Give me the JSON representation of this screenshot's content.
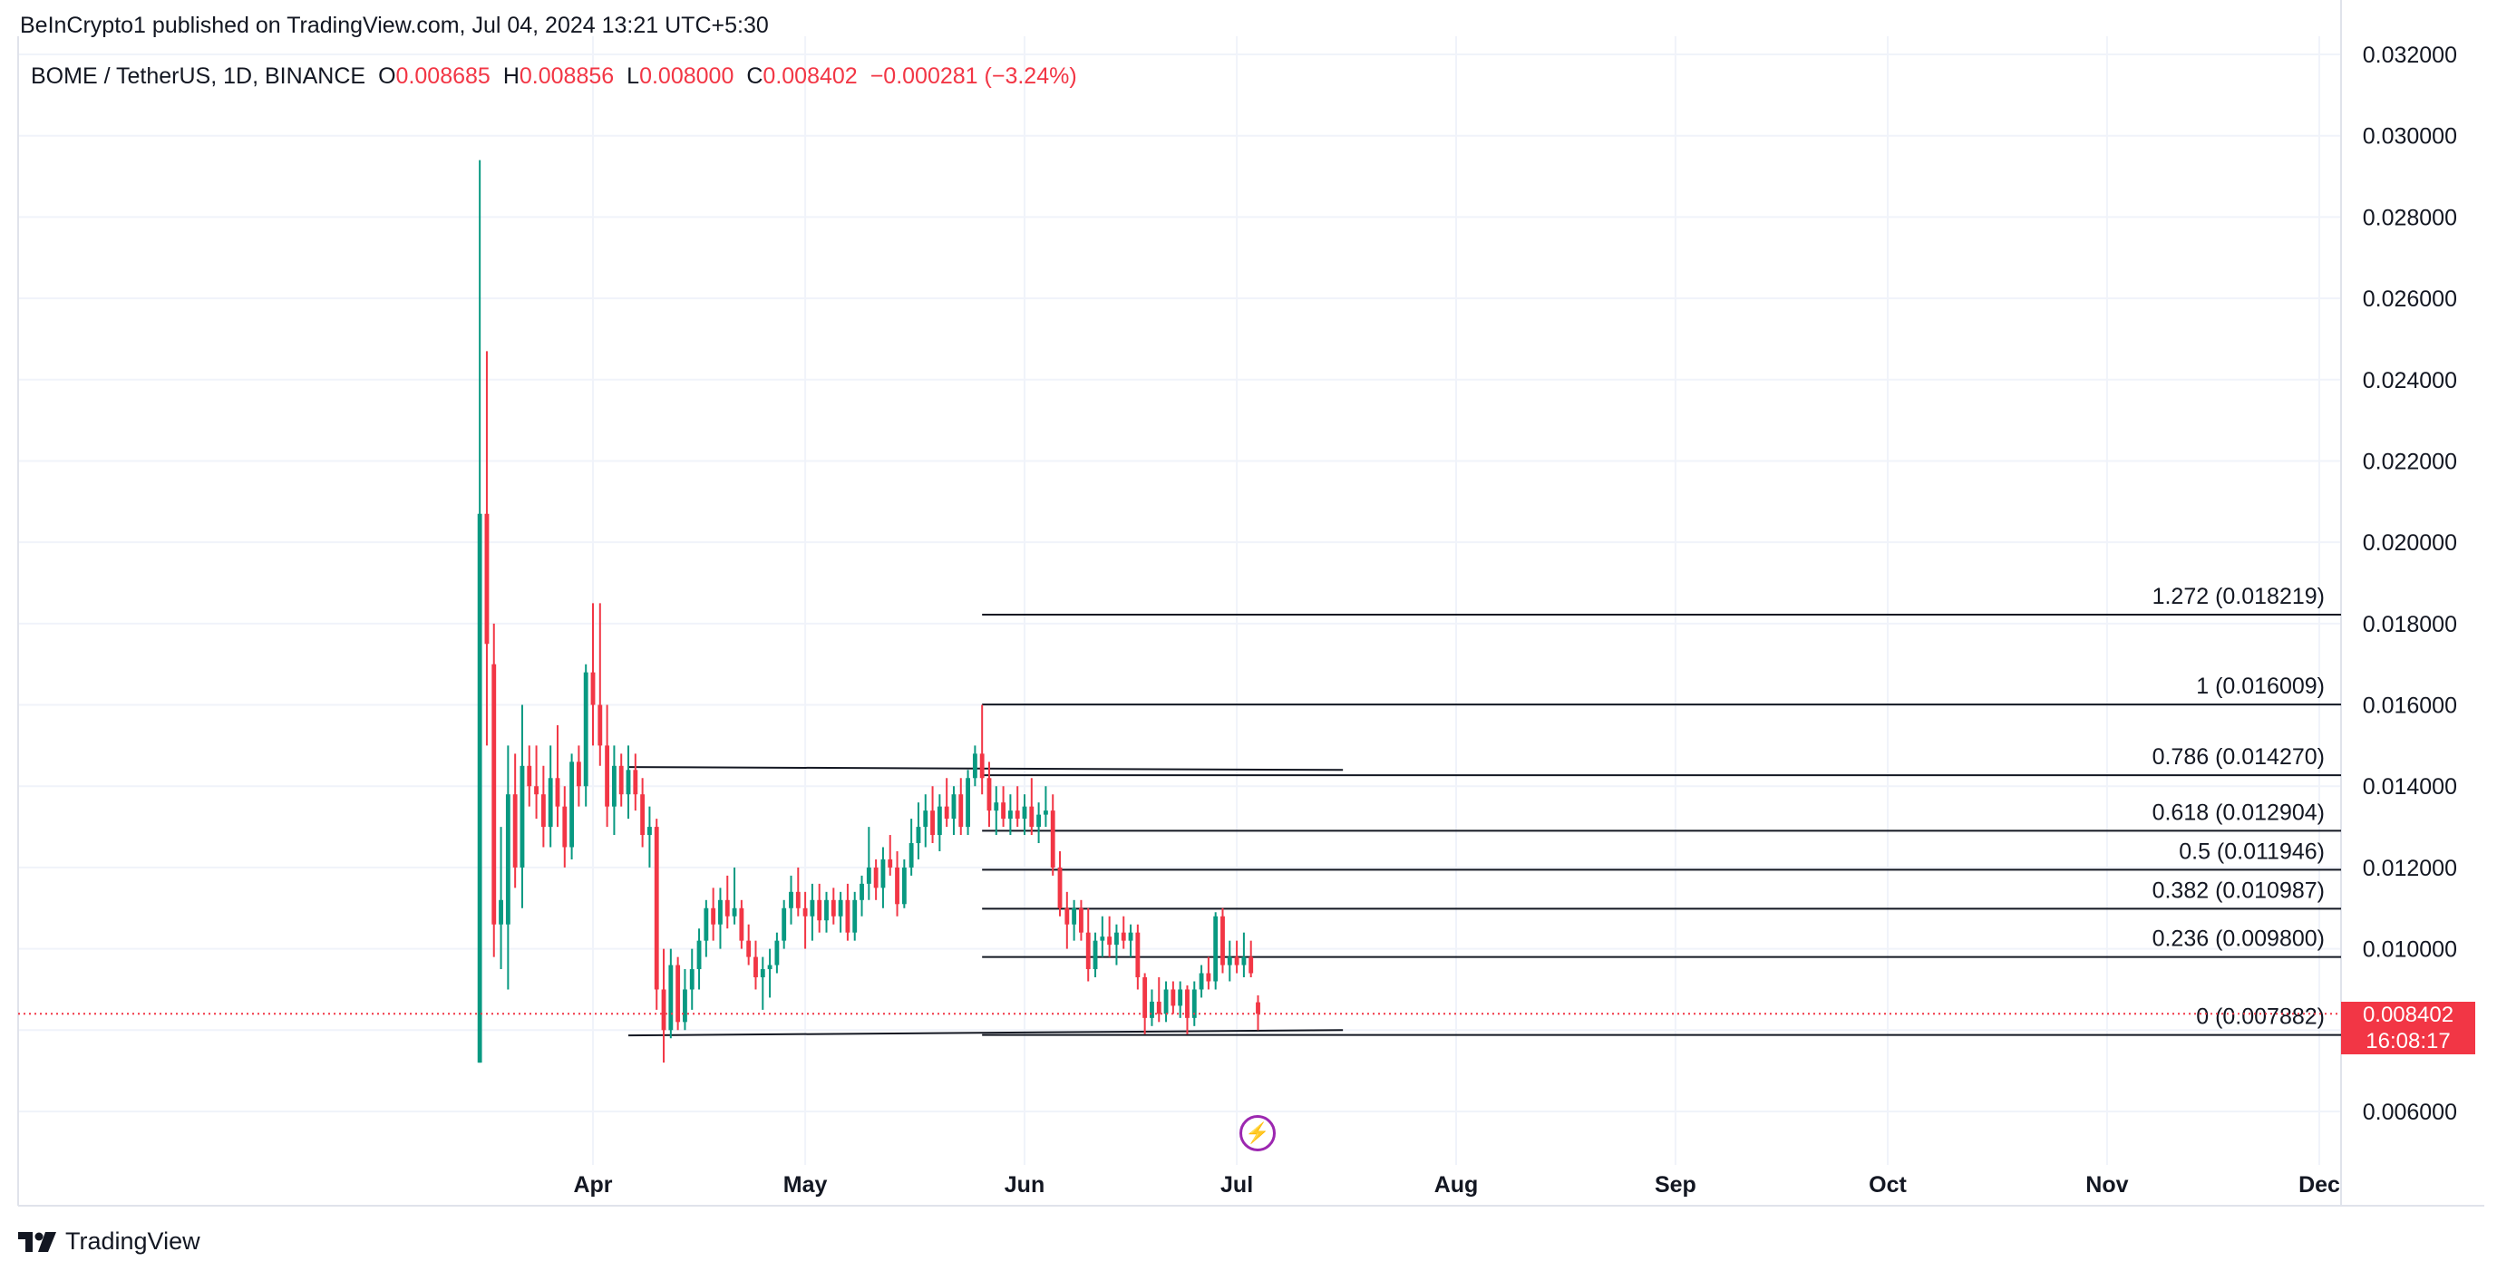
{
  "header": {
    "published_by": "BeInCrypto1 published on TradingView.com, Jul 04, 2024 13:21 UTC+5:30"
  },
  "symbol": {
    "name": "BOME / TetherUS, 1D, BINANCE",
    "o_label": "O",
    "o_value": "0.008685",
    "h_label": "H",
    "h_value": "0.008856",
    "l_label": "L",
    "l_value": "0.008000",
    "c_label": "C",
    "c_value": "0.008402",
    "change": "−0.000281 (−3.24%)"
  },
  "current_price": {
    "value": "0.008402",
    "countdown": "16:08:17",
    "color": "#f23645"
  },
  "brand": {
    "name": "TradingView"
  },
  "colors": {
    "up": "#089981",
    "down": "#f23645",
    "grid": "#f0f3fa",
    "line": "#131722",
    "accent": "#9c27b0"
  },
  "chart_data": {
    "type": "candlestick",
    "title": "BOME / TetherUS, 1D, BINANCE",
    "xlabel": "",
    "ylabel": "",
    "ylim": [
      0.005,
      0.032
    ],
    "y_ticks": [
      "0.032000",
      "0.030000",
      "0.028000",
      "0.026000",
      "0.024000",
      "0.022000",
      "0.020000",
      "0.018000",
      "0.016000",
      "0.014000",
      "0.012000",
      "0.010000",
      "0.008000",
      "0.006000"
    ],
    "x_ticks": [
      {
        "label": "Apr",
        "date": "2024-04-01"
      },
      {
        "label": "May",
        "date": "2024-05-01"
      },
      {
        "label": "Jun",
        "date": "2024-06-01"
      },
      {
        "label": "Jul",
        "date": "2024-07-01"
      },
      {
        "label": "Aug",
        "date": "2024-08-01"
      },
      {
        "label": "Sep",
        "date": "2024-09-01"
      },
      {
        "label": "Oct",
        "date": "2024-10-01"
      },
      {
        "label": "Nov",
        "date": "2024-11-01"
      },
      {
        "label": "Dec",
        "date": "2024-12-01"
      }
    ],
    "candles": [
      {
        "date": "2024-03-16",
        "o": 0.0072,
        "h": 0.0294,
        "l": 0.0072,
        "c": 0.0207
      },
      {
        "date": "2024-03-17",
        "o": 0.0207,
        "h": 0.0247,
        "l": 0.015,
        "c": 0.0175
      },
      {
        "date": "2024-03-18",
        "o": 0.017,
        "h": 0.018,
        "l": 0.0098,
        "c": 0.0106
      },
      {
        "date": "2024-03-19",
        "o": 0.0106,
        "h": 0.013,
        "l": 0.0095,
        "c": 0.0112
      },
      {
        "date": "2024-03-20",
        "o": 0.0106,
        "h": 0.015,
        "l": 0.009,
        "c": 0.0138
      },
      {
        "date": "2024-03-21",
        "o": 0.0138,
        "h": 0.0148,
        "l": 0.0115,
        "c": 0.012
      },
      {
        "date": "2024-03-22",
        "o": 0.012,
        "h": 0.016,
        "l": 0.011,
        "c": 0.0145
      },
      {
        "date": "2024-03-23",
        "o": 0.0145,
        "h": 0.015,
        "l": 0.0135,
        "c": 0.014
      },
      {
        "date": "2024-03-24",
        "o": 0.014,
        "h": 0.015,
        "l": 0.0132,
        "c": 0.0138
      },
      {
        "date": "2024-03-25",
        "o": 0.0138,
        "h": 0.0145,
        "l": 0.0125,
        "c": 0.013
      },
      {
        "date": "2024-03-26",
        "o": 0.013,
        "h": 0.015,
        "l": 0.0125,
        "c": 0.0142
      },
      {
        "date": "2024-03-27",
        "o": 0.0142,
        "h": 0.0155,
        "l": 0.013,
        "c": 0.0135
      },
      {
        "date": "2024-03-28",
        "o": 0.0135,
        "h": 0.014,
        "l": 0.012,
        "c": 0.0125
      },
      {
        "date": "2024-03-29",
        "o": 0.0125,
        "h": 0.0148,
        "l": 0.0122,
        "c": 0.0146
      },
      {
        "date": "2024-03-30",
        "o": 0.0146,
        "h": 0.015,
        "l": 0.0135,
        "c": 0.014
      },
      {
        "date": "2024-03-31",
        "o": 0.014,
        "h": 0.017,
        "l": 0.0135,
        "c": 0.0168
      },
      {
        "date": "2024-04-01",
        "o": 0.0168,
        "h": 0.0185,
        "l": 0.015,
        "c": 0.016
      },
      {
        "date": "2024-04-02",
        "o": 0.016,
        "h": 0.0185,
        "l": 0.0145,
        "c": 0.015
      },
      {
        "date": "2024-04-03",
        "o": 0.015,
        "h": 0.016,
        "l": 0.013,
        "c": 0.0135
      },
      {
        "date": "2024-04-04",
        "o": 0.0135,
        "h": 0.015,
        "l": 0.0128,
        "c": 0.0145
      },
      {
        "date": "2024-04-05",
        "o": 0.0145,
        "h": 0.0148,
        "l": 0.0135,
        "c": 0.0138
      },
      {
        "date": "2024-04-06",
        "o": 0.0138,
        "h": 0.015,
        "l": 0.0132,
        "c": 0.0144
      },
      {
        "date": "2024-04-07",
        "o": 0.0144,
        "h": 0.0148,
        "l": 0.0134,
        "c": 0.0138
      },
      {
        "date": "2024-04-08",
        "o": 0.0138,
        "h": 0.0142,
        "l": 0.0125,
        "c": 0.0128
      },
      {
        "date": "2024-04-09",
        "o": 0.0128,
        "h": 0.0135,
        "l": 0.012,
        "c": 0.013
      },
      {
        "date": "2024-04-10",
        "o": 0.013,
        "h": 0.0132,
        "l": 0.0085,
        "c": 0.009
      },
      {
        "date": "2024-04-11",
        "o": 0.009,
        "h": 0.01,
        "l": 0.0072,
        "c": 0.008
      },
      {
        "date": "2024-04-12",
        "o": 0.008,
        "h": 0.01,
        "l": 0.0078,
        "c": 0.0096
      },
      {
        "date": "2024-04-13",
        "o": 0.0096,
        "h": 0.0098,
        "l": 0.008,
        "c": 0.0082
      },
      {
        "date": "2024-04-14",
        "o": 0.0082,
        "h": 0.0095,
        "l": 0.008,
        "c": 0.009
      },
      {
        "date": "2024-04-15",
        "o": 0.009,
        "h": 0.01,
        "l": 0.0085,
        "c": 0.0095
      },
      {
        "date": "2024-04-16",
        "o": 0.0095,
        "h": 0.0105,
        "l": 0.009,
        "c": 0.0102
      },
      {
        "date": "2024-04-17",
        "o": 0.0102,
        "h": 0.0112,
        "l": 0.0098,
        "c": 0.011
      },
      {
        "date": "2024-04-18",
        "o": 0.011,
        "h": 0.0115,
        "l": 0.0102,
        "c": 0.0106
      },
      {
        "date": "2024-04-19",
        "o": 0.0106,
        "h": 0.0115,
        "l": 0.01,
        "c": 0.0112
      },
      {
        "date": "2024-04-20",
        "o": 0.0112,
        "h": 0.0118,
        "l": 0.0105,
        "c": 0.0108
      },
      {
        "date": "2024-04-21",
        "o": 0.0108,
        "h": 0.012,
        "l": 0.0106,
        "c": 0.011
      },
      {
        "date": "2024-04-22",
        "o": 0.011,
        "h": 0.0112,
        "l": 0.01,
        "c": 0.0102
      },
      {
        "date": "2024-04-23",
        "o": 0.0102,
        "h": 0.0106,
        "l": 0.0096,
        "c": 0.0098
      },
      {
        "date": "2024-04-24",
        "o": 0.0098,
        "h": 0.0102,
        "l": 0.009,
        "c": 0.0093
      },
      {
        "date": "2024-04-25",
        "o": 0.0093,
        "h": 0.0098,
        "l": 0.0085,
        "c": 0.0095
      },
      {
        "date": "2024-04-26",
        "o": 0.0095,
        "h": 0.01,
        "l": 0.0088,
        "c": 0.0096
      },
      {
        "date": "2024-04-27",
        "o": 0.0096,
        "h": 0.0104,
        "l": 0.0094,
        "c": 0.0102
      },
      {
        "date": "2024-04-28",
        "o": 0.0102,
        "h": 0.0112,
        "l": 0.01,
        "c": 0.011
      },
      {
        "date": "2024-04-29",
        "o": 0.011,
        "h": 0.0118,
        "l": 0.0106,
        "c": 0.0114
      },
      {
        "date": "2024-04-30",
        "o": 0.0114,
        "h": 0.012,
        "l": 0.0108,
        "c": 0.011
      },
      {
        "date": "2024-05-01",
        "o": 0.011,
        "h": 0.0114,
        "l": 0.01,
        "c": 0.0108
      },
      {
        "date": "2024-05-02",
        "o": 0.0108,
        "h": 0.0116,
        "l": 0.0102,
        "c": 0.0112
      },
      {
        "date": "2024-05-03",
        "o": 0.0112,
        "h": 0.0116,
        "l": 0.0104,
        "c": 0.0107
      },
      {
        "date": "2024-05-04",
        "o": 0.0107,
        "h": 0.0114,
        "l": 0.0104,
        "c": 0.0112
      },
      {
        "date": "2024-05-05",
        "o": 0.0112,
        "h": 0.0115,
        "l": 0.0106,
        "c": 0.0108
      },
      {
        "date": "2024-05-06",
        "o": 0.0108,
        "h": 0.0114,
        "l": 0.0104,
        "c": 0.0112
      },
      {
        "date": "2024-05-07",
        "o": 0.0112,
        "h": 0.0116,
        "l": 0.0102,
        "c": 0.0104
      },
      {
        "date": "2024-05-08",
        "o": 0.0104,
        "h": 0.0114,
        "l": 0.0102,
        "c": 0.0112
      },
      {
        "date": "2024-05-09",
        "o": 0.0112,
        "h": 0.0118,
        "l": 0.0108,
        "c": 0.0116
      },
      {
        "date": "2024-05-10",
        "o": 0.0116,
        "h": 0.013,
        "l": 0.0112,
        "c": 0.012
      },
      {
        "date": "2024-05-11",
        "o": 0.012,
        "h": 0.0122,
        "l": 0.0112,
        "c": 0.0115
      },
      {
        "date": "2024-05-12",
        "o": 0.0115,
        "h": 0.0125,
        "l": 0.011,
        "c": 0.0122
      },
      {
        "date": "2024-05-13",
        "o": 0.0122,
        "h": 0.0128,
        "l": 0.0118,
        "c": 0.012
      },
      {
        "date": "2024-05-14",
        "o": 0.012,
        "h": 0.0124,
        "l": 0.0108,
        "c": 0.0111
      },
      {
        "date": "2024-05-15",
        "o": 0.0111,
        "h": 0.0122,
        "l": 0.011,
        "c": 0.012
      },
      {
        "date": "2024-05-16",
        "o": 0.012,
        "h": 0.0132,
        "l": 0.0118,
        "c": 0.0126
      },
      {
        "date": "2024-05-17",
        "o": 0.0126,
        "h": 0.0136,
        "l": 0.0122,
        "c": 0.013
      },
      {
        "date": "2024-05-18",
        "o": 0.013,
        "h": 0.0138,
        "l": 0.0125,
        "c": 0.0134
      },
      {
        "date": "2024-05-19",
        "o": 0.0134,
        "h": 0.014,
        "l": 0.0126,
        "c": 0.0128
      },
      {
        "date": "2024-05-20",
        "o": 0.0128,
        "h": 0.0138,
        "l": 0.0124,
        "c": 0.0135
      },
      {
        "date": "2024-05-21",
        "o": 0.0135,
        "h": 0.0142,
        "l": 0.013,
        "c": 0.0132
      },
      {
        "date": "2024-05-22",
        "o": 0.0132,
        "h": 0.014,
        "l": 0.0128,
        "c": 0.0138
      },
      {
        "date": "2024-05-23",
        "o": 0.0138,
        "h": 0.0142,
        "l": 0.0128,
        "c": 0.013
      },
      {
        "date": "2024-05-24",
        "o": 0.013,
        "h": 0.0144,
        "l": 0.0128,
        "c": 0.0142
      },
      {
        "date": "2024-05-25",
        "o": 0.0142,
        "h": 0.015,
        "l": 0.014,
        "c": 0.0148
      },
      {
        "date": "2024-05-26",
        "o": 0.0148,
        "h": 0.016,
        "l": 0.0138,
        "c": 0.0142
      },
      {
        "date": "2024-05-27",
        "o": 0.0142,
        "h": 0.0146,
        "l": 0.013,
        "c": 0.0134
      },
      {
        "date": "2024-05-28",
        "o": 0.0134,
        "h": 0.014,
        "l": 0.0128,
        "c": 0.0136
      },
      {
        "date": "2024-05-29",
        "o": 0.0136,
        "h": 0.014,
        "l": 0.013,
        "c": 0.0132
      },
      {
        "date": "2024-05-30",
        "o": 0.0132,
        "h": 0.0138,
        "l": 0.0128,
        "c": 0.0134
      },
      {
        "date": "2024-05-31",
        "o": 0.0134,
        "h": 0.014,
        "l": 0.013,
        "c": 0.0132
      },
      {
        "date": "2024-06-01",
        "o": 0.0132,
        "h": 0.0138,
        "l": 0.0128,
        "c": 0.0135
      },
      {
        "date": "2024-06-02",
        "o": 0.0135,
        "h": 0.0142,
        "l": 0.0128,
        "c": 0.013
      },
      {
        "date": "2024-06-03",
        "o": 0.013,
        "h": 0.0136,
        "l": 0.0126,
        "c": 0.0133
      },
      {
        "date": "2024-06-04",
        "o": 0.0133,
        "h": 0.014,
        "l": 0.013,
        "c": 0.0134
      },
      {
        "date": "2024-06-05",
        "o": 0.0134,
        "h": 0.0138,
        "l": 0.0118,
        "c": 0.012
      },
      {
        "date": "2024-06-06",
        "o": 0.012,
        "h": 0.0124,
        "l": 0.0108,
        "c": 0.011
      },
      {
        "date": "2024-06-07",
        "o": 0.011,
        "h": 0.0114,
        "l": 0.01,
        "c": 0.0106
      },
      {
        "date": "2024-06-08",
        "o": 0.0106,
        "h": 0.0112,
        "l": 0.0102,
        "c": 0.011
      },
      {
        "date": "2024-06-09",
        "o": 0.011,
        "h": 0.0112,
        "l": 0.0102,
        "c": 0.0104
      },
      {
        "date": "2024-06-10",
        "o": 0.0104,
        "h": 0.011,
        "l": 0.0092,
        "c": 0.0095
      },
      {
        "date": "2024-06-11",
        "o": 0.0095,
        "h": 0.0104,
        "l": 0.0093,
        "c": 0.0102
      },
      {
        "date": "2024-06-12",
        "o": 0.0102,
        "h": 0.0108,
        "l": 0.0098,
        "c": 0.0103
      },
      {
        "date": "2024-06-13",
        "o": 0.0103,
        "h": 0.0108,
        "l": 0.0098,
        "c": 0.0101
      },
      {
        "date": "2024-06-14",
        "o": 0.0101,
        "h": 0.0106,
        "l": 0.0096,
        "c": 0.0104
      },
      {
        "date": "2024-06-15",
        "o": 0.0104,
        "h": 0.0108,
        "l": 0.01,
        "c": 0.0102
      },
      {
        "date": "2024-06-16",
        "o": 0.0102,
        "h": 0.0106,
        "l": 0.0098,
        "c": 0.0104
      },
      {
        "date": "2024-06-17",
        "o": 0.0104,
        "h": 0.0106,
        "l": 0.009,
        "c": 0.0093
      },
      {
        "date": "2024-06-18",
        "o": 0.0093,
        "h": 0.0094,
        "l": 0.0079,
        "c": 0.0083
      },
      {
        "date": "2024-06-19",
        "o": 0.0083,
        "h": 0.009,
        "l": 0.0081,
        "c": 0.0087
      },
      {
        "date": "2024-06-20",
        "o": 0.0087,
        "h": 0.0093,
        "l": 0.0082,
        "c": 0.0084
      },
      {
        "date": "2024-06-21",
        "o": 0.0084,
        "h": 0.0092,
        "l": 0.0082,
        "c": 0.009
      },
      {
        "date": "2024-06-22",
        "o": 0.009,
        "h": 0.0092,
        "l": 0.0084,
        "c": 0.0086
      },
      {
        "date": "2024-06-23",
        "o": 0.0086,
        "h": 0.0092,
        "l": 0.0083,
        "c": 0.009
      },
      {
        "date": "2024-06-24",
        "o": 0.009,
        "h": 0.0091,
        "l": 0.0079,
        "c": 0.0083
      },
      {
        "date": "2024-06-25",
        "o": 0.0083,
        "h": 0.0092,
        "l": 0.0081,
        "c": 0.009
      },
      {
        "date": "2024-06-26",
        "o": 0.009,
        "h": 0.0096,
        "l": 0.0088,
        "c": 0.0094
      },
      {
        "date": "2024-06-27",
        "o": 0.0094,
        "h": 0.0098,
        "l": 0.009,
        "c": 0.0092
      },
      {
        "date": "2024-06-28",
        "o": 0.0092,
        "h": 0.0109,
        "l": 0.009,
        "c": 0.0108
      },
      {
        "date": "2024-06-29",
        "o": 0.0108,
        "h": 0.011,
        "l": 0.0094,
        "c": 0.0096
      },
      {
        "date": "2024-06-30",
        "o": 0.0096,
        "h": 0.0102,
        "l": 0.0092,
        "c": 0.0098
      },
      {
        "date": "2024-07-01",
        "o": 0.0098,
        "h": 0.0102,
        "l": 0.0094,
        "c": 0.0096
      },
      {
        "date": "2024-07-02",
        "o": 0.0096,
        "h": 0.0104,
        "l": 0.0093,
        "c": 0.0098
      },
      {
        "date": "2024-07-03",
        "o": 0.0098,
        "h": 0.0102,
        "l": 0.0093,
        "c": 0.0094
      },
      {
        "date": "2024-07-04",
        "o": 0.008685,
        "h": 0.008856,
        "l": 0.008,
        "c": 0.008402
      }
    ],
    "fib_levels": [
      {
        "ratio": "1.272",
        "price": 0.018219,
        "label": "1.272 (0.018219)"
      },
      {
        "ratio": "1",
        "price": 0.016009,
        "label": "1 (0.016009)"
      },
      {
        "ratio": "0.786",
        "price": 0.01427,
        "label": "0.786 (0.014270)"
      },
      {
        "ratio": "0.618",
        "price": 0.012904,
        "label": "0.618 (0.012904)"
      },
      {
        "ratio": "0.5",
        "price": 0.011946,
        "label": "0.5 (0.011946)"
      },
      {
        "ratio": "0.382",
        "price": 0.010987,
        "label": "0.382 (0.010987)"
      },
      {
        "ratio": "0.236",
        "price": 0.0098,
        "label": "0.236 (0.009800)"
      },
      {
        "ratio": "0",
        "price": 0.007882,
        "label": "0 (0.007882)"
      }
    ],
    "fib_start": "2024-05-26",
    "fib_end": "2024-12-01",
    "trendlines": [
      {
        "x1": "2024-04-06",
        "y1": 0.01447,
        "x2": "2024-07-16",
        "y2": 0.0144
      },
      {
        "x1": "2024-04-06",
        "y1": 0.00787,
        "x2": "2024-07-16",
        "y2": 0.008
      }
    ],
    "current_price_line": 0.008402,
    "grid": true
  }
}
